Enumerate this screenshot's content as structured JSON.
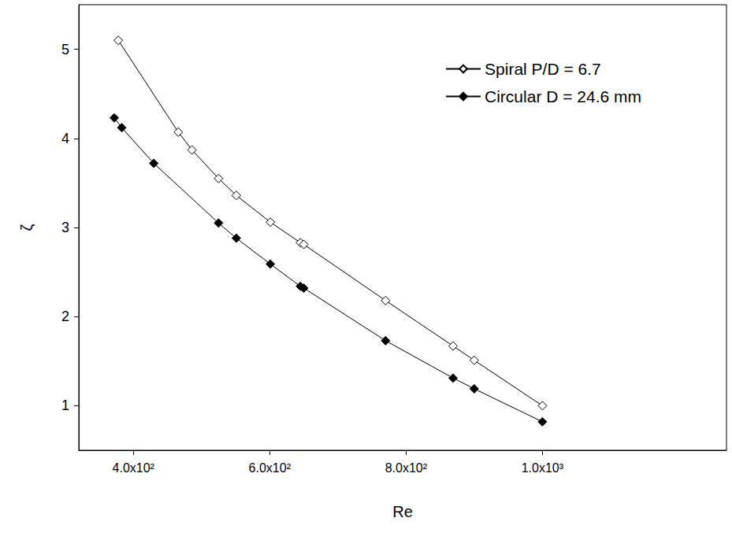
{
  "chart_data": {
    "type": "line",
    "x_label": "Re",
    "y_label": "ζ",
    "xlim": [
      320,
      1270
    ],
    "xticks": [
      {
        "value": 400,
        "label": "4.0x10²"
      },
      {
        "value": 600,
        "label": "6.0x10²"
      },
      {
        "value": 800,
        "label": "8.0x10²"
      },
      {
        "value": 1000,
        "label": "1.0x10³"
      }
    ],
    "ylim": [
      0.5,
      5.5
    ],
    "yticks": [
      1,
      2,
      3,
      4,
      5
    ],
    "grid": false,
    "legend": "top-right",
    "series": [
      {
        "name": "Spiral P/D = 6.7",
        "color": "#000000",
        "marker": "diamond_open",
        "line_style": "solid",
        "x": [
          378,
          466,
          486,
          525,
          551,
          601,
          645,
          650,
          770,
          869,
          900,
          1000
        ],
        "values": [
          5.1,
          4.07,
          3.87,
          3.55,
          3.36,
          3.06,
          2.83,
          2.81,
          2.18,
          1.67,
          1.51,
          1.0
        ]
      },
      {
        "name": "Circular D = 24.6 mm",
        "color": "#000000",
        "marker": "diamond",
        "line_style": "solid",
        "x": [
          372,
          383,
          430,
          525,
          551,
          601,
          645,
          650,
          770,
          869,
          900,
          1000
        ],
        "values": [
          4.23,
          4.12,
          3.72,
          3.05,
          2.88,
          2.59,
          2.34,
          2.32,
          1.73,
          1.31,
          1.19,
          0.82
        ]
      }
    ]
  }
}
